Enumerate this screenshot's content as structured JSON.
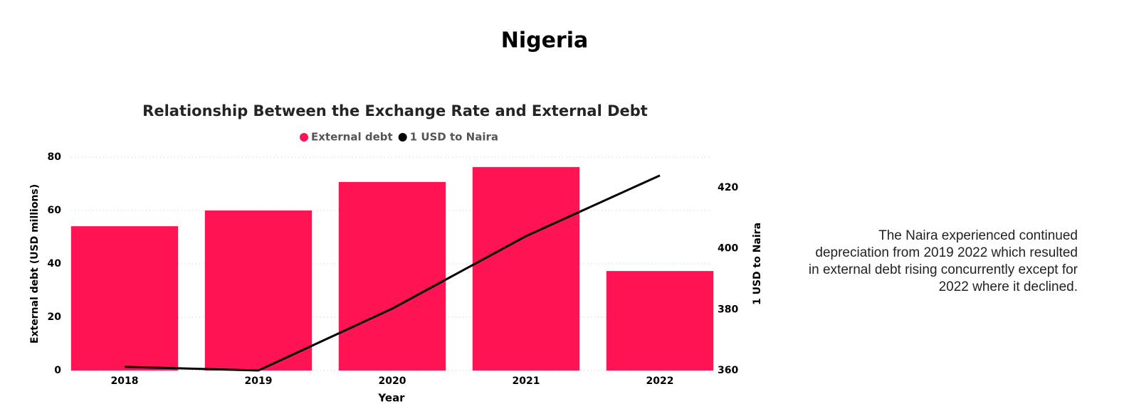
{
  "page_title": "Nigeria",
  "description": "The Naira experienced continued depreciation from 2019 2022 which resulted in external debt rising concurrently except for 2022 where it declined.",
  "chart_data": {
    "type": "bar-line",
    "title": "Relationship Between the Exchange Rate and External Debt",
    "x_label": "Year",
    "y_label": "External debt (USD millions)",
    "y2_label": "1 USD to Naira",
    "categories": [
      "2018",
      "2019",
      "2020",
      "2021",
      "2022"
    ],
    "series": [
      {
        "name": "External debt",
        "type": "bar",
        "color": "#fe1353",
        "values": [
          54.1,
          60,
          70.7,
          76.3,
          37.3
        ]
      },
      {
        "name": "1 USD to Naira",
        "type": "line",
        "axis": "y2",
        "color": "#000000",
        "values": [
          361.2,
          360,
          380.3,
          404.1,
          424
        ]
      }
    ],
    "ylim": [
      0,
      80
    ],
    "yticks": [
      0,
      20,
      40,
      60,
      80
    ],
    "y2lim": [
      360,
      430
    ],
    "y2ticks": [
      360,
      380,
      400,
      420
    ],
    "grid": true,
    "legend": "top"
  }
}
